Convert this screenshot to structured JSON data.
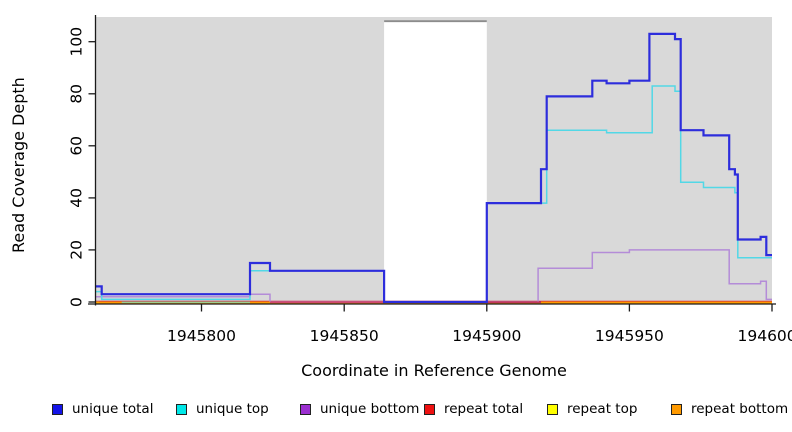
{
  "figure": {
    "bg": "#ffffff"
  },
  "chart_data": {
    "type": "line",
    "subtype": "step-after",
    "title": "",
    "xlabel": "Coordinate in Reference Genome",
    "ylabel": "Read Coverage Depth",
    "xlim": [
      1945763,
      1946000
    ],
    "ylim": [
      0,
      109
    ],
    "grid": false,
    "panel_bg": "#d9d9d9",
    "axis_color": "#1a1a1a",
    "x_ticks": [
      "1945800",
      "1945850",
      "1945900",
      "1945950",
      "1946000"
    ],
    "x_tick_values": [
      1945800,
      1945850,
      1945900,
      1945950,
      1946000
    ],
    "y_ticks": [
      "0",
      "20",
      "40",
      "60",
      "80",
      "100"
    ],
    "y_tick_values": [
      0,
      20,
      40,
      60,
      80,
      100
    ],
    "masked_region": {
      "x0": 1945864,
      "x1": 1945900,
      "fill": "#ffffff",
      "top_border": "#8c8c8c"
    },
    "series": [
      {
        "name": "unique total",
        "color": "#2d2ddc",
        "legend_color": "#1414e8",
        "lwd": 2.2,
        "dy": 0,
        "points": [
          [
            1945763,
            6
          ],
          [
            1945765,
            3
          ],
          [
            1945817,
            15
          ],
          [
            1945824,
            12
          ],
          [
            1945864,
            0
          ],
          [
            1945900,
            38
          ],
          [
            1945919,
            51
          ],
          [
            1945921,
            79
          ],
          [
            1945937,
            85
          ],
          [
            1945942,
            84
          ],
          [
            1945950,
            85
          ],
          [
            1945957,
            103
          ],
          [
            1945966,
            101
          ],
          [
            1945968,
            66
          ],
          [
            1945976,
            64
          ],
          [
            1945985,
            51
          ],
          [
            1945987,
            49
          ],
          [
            1945988,
            24
          ],
          [
            1945996,
            25
          ],
          [
            1945998,
            18
          ]
        ]
      },
      {
        "name": "unique top",
        "color": "#52d8e6",
        "legend_color": "#00e8e8",
        "lwd": 1.5,
        "dy": 0,
        "points": [
          [
            1945763,
            4
          ],
          [
            1945765,
            1
          ],
          [
            1945817,
            12
          ],
          [
            1945864,
            0
          ],
          [
            1945900,
            38
          ],
          [
            1945921,
            66
          ],
          [
            1945942,
            65
          ],
          [
            1945958,
            83
          ],
          [
            1945966,
            81
          ],
          [
            1945968,
            46
          ],
          [
            1945976,
            44
          ],
          [
            1945987,
            42
          ],
          [
            1945988,
            17
          ]
        ]
      },
      {
        "name": "unique bottom",
        "color": "#b48cd8",
        "legend_color": "#9b2fd0",
        "lwd": 1.5,
        "dy": 0,
        "points": [
          [
            1945763,
            2
          ],
          [
            1945817,
            3
          ],
          [
            1945824,
            0
          ],
          [
            1945918,
            13
          ],
          [
            1945937,
            19
          ],
          [
            1945950,
            20
          ],
          [
            1945985,
            7
          ],
          [
            1945996,
            8
          ],
          [
            1945998,
            1
          ]
        ]
      },
      {
        "name": "repeat total",
        "color": "#cc2244",
        "legend_color": "#ee1111",
        "lwd": 1.2,
        "dy": -0.6,
        "points": [
          [
            1945763,
            0
          ]
        ]
      },
      {
        "name": "repeat top",
        "color": "#ffff00",
        "legend_color": "#ffff00",
        "lwd": 1.2,
        "dy": 0.2,
        "points": [
          [
            1945763,
            0
          ]
        ]
      },
      {
        "name": "repeat bottom",
        "color": "#ff9a00",
        "legend_color": "#ff9a00",
        "lwd": 1.4,
        "dy": 0.8,
        "points": [
          [
            1945763,
            0
          ]
        ]
      }
    ],
    "baseline_segments": [
      {
        "x0": 1945764,
        "x1": 1945772,
        "color": "#ff9a00"
      },
      {
        "x0": 1945772,
        "x1": 1945817,
        "color": "#9ccf8e"
      },
      {
        "x0": 1945817,
        "x1": 1945824,
        "color": "#ff9a00"
      },
      {
        "x0": 1945824,
        "x1": 1945864,
        "color": "#d14a6a"
      },
      {
        "x0": 1945900,
        "x1": 1945919,
        "color": "#c23858"
      },
      {
        "x0": 1945919,
        "x1": 1946000,
        "color": "#ff9a00"
      }
    ],
    "legend": [
      {
        "label": "unique total",
        "color": "#1414e8"
      },
      {
        "label": "unique top",
        "color": "#00e8e8"
      },
      {
        "label": "unique bottom",
        "color": "#9b2fd0"
      },
      {
        "label": "repeat total",
        "color": "#ee1111"
      },
      {
        "label": "repeat top",
        "color": "#ffff00"
      },
      {
        "label": "repeat bottom",
        "color": "#ff9a00"
      }
    ],
    "legend_position": "bottom"
  }
}
